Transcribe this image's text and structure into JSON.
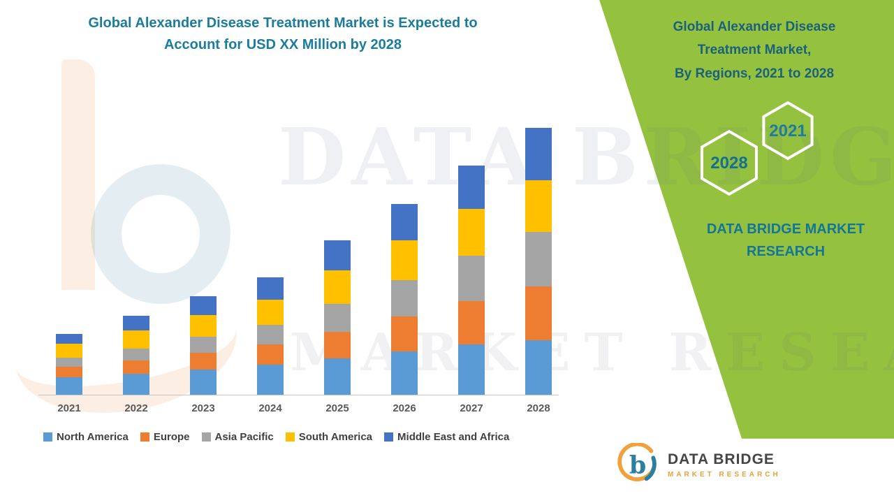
{
  "headline": {
    "line1": "Global Alexander Disease Treatment Market is Expected to",
    "line2": "Account for USD XX Million by 2028"
  },
  "watermark": {
    "title": "DATA BRIDGE",
    "subtitle": "MARKET RESEARCH"
  },
  "right_panel": {
    "bg_color": "#95C23E",
    "title_line1": "Global Alexander Disease",
    "title_line2": "Treatment Market,",
    "title_line3": "By Regions, 2021 to 2028",
    "hex_year_right": "2021",
    "hex_year_left": "2028",
    "brand_line1": "DATA BRIDGE MARKET",
    "brand_line2": "RESEARCH"
  },
  "footer_logo": {
    "brand_name": "DATA BRIDGE",
    "brand_tagline": "MARKET RESEARCH"
  },
  "chart_data": {
    "type": "bar",
    "stacked": true,
    "title": "Global Alexander Disease Treatment Market is Expected to Account for USD XX Million by 2028",
    "categories": [
      "2021",
      "2022",
      "2023",
      "2024",
      "2025",
      "2026",
      "2027",
      "2028"
    ],
    "series": [
      {
        "name": "North America",
        "color": "#5B9BD5",
        "values": [
          25,
          30,
          36,
          43,
          52,
          62,
          72,
          78
        ]
      },
      {
        "name": "Europe",
        "color": "#ED7D31",
        "values": [
          15,
          19,
          24,
          29,
          38,
          50,
          62,
          77
        ]
      },
      {
        "name": "Asia Pacific",
        "color": "#A5A5A5",
        "values": [
          13,
          17,
          23,
          28,
          40,
          52,
          65,
          78
        ]
      },
      {
        "name": "South America",
        "color": "#FFC000",
        "values": [
          20,
          26,
          31,
          36,
          48,
          57,
          67,
          74
        ]
      },
      {
        "name": "Middle East and Africa",
        "color": "#4472C4",
        "values": [
          14,
          21,
          27,
          32,
          43,
          52,
          62,
          75
        ]
      }
    ],
    "xlabel": "",
    "ylabel": "",
    "y_axis_visible": false,
    "grid": false,
    "legend_position": "bottom",
    "units": "relative stacked heights (no numeric y-axis shown; values labeled USD XX Million)"
  }
}
